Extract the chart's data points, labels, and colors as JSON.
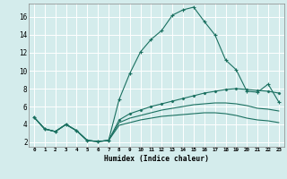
{
  "xlabel": "Humidex (Indice chaleur)",
  "bg_color": "#d4ecec",
  "grid_color": "#ffffff",
  "line_color": "#1a7060",
  "xlim": [
    -0.5,
    23.5
  ],
  "ylim": [
    1.5,
    17.5
  ],
  "xticks": [
    0,
    1,
    2,
    3,
    4,
    5,
    6,
    7,
    8,
    9,
    10,
    11,
    12,
    13,
    14,
    15,
    16,
    17,
    18,
    19,
    20,
    21,
    22,
    23
  ],
  "yticks": [
    2,
    4,
    6,
    8,
    10,
    12,
    14,
    16
  ],
  "series1_x": [
    0,
    1,
    2,
    3,
    4,
    5,
    6,
    7,
    8,
    9,
    10,
    11,
    12,
    13,
    14,
    15,
    16,
    17,
    18,
    19,
    20,
    21,
    22,
    23
  ],
  "series1_y": [
    4.8,
    3.5,
    3.2,
    4.0,
    3.3,
    2.2,
    2.1,
    2.2,
    6.8,
    9.7,
    12.1,
    13.5,
    14.5,
    16.2,
    16.8,
    17.1,
    15.5,
    14.0,
    11.2,
    10.1,
    7.7,
    7.6,
    8.5,
    6.5
  ],
  "series2_x": [
    0,
    1,
    2,
    3,
    4,
    5,
    6,
    7,
    8,
    9,
    10,
    11,
    12,
    13,
    14,
    15,
    16,
    17,
    18,
    19,
    20,
    21,
    22,
    23
  ],
  "series2_y": [
    4.8,
    3.5,
    3.2,
    4.0,
    3.3,
    2.2,
    2.1,
    2.2,
    4.5,
    5.2,
    5.6,
    6.0,
    6.3,
    6.6,
    6.9,
    7.2,
    7.5,
    7.7,
    7.9,
    8.0,
    7.9,
    7.8,
    7.7,
    7.5
  ],
  "series3_x": [
    0,
    1,
    2,
    3,
    4,
    5,
    6,
    7,
    8,
    9,
    10,
    11,
    12,
    13,
    14,
    15,
    16,
    17,
    18,
    19,
    20,
    21,
    22,
    23
  ],
  "series3_y": [
    4.8,
    3.5,
    3.2,
    4.0,
    3.3,
    2.2,
    2.1,
    2.2,
    4.2,
    4.7,
    5.0,
    5.3,
    5.6,
    5.8,
    6.0,
    6.2,
    6.3,
    6.4,
    6.4,
    6.3,
    6.1,
    5.8,
    5.7,
    5.5
  ],
  "series4_x": [
    0,
    1,
    2,
    3,
    4,
    5,
    6,
    7,
    8,
    9,
    10,
    11,
    12,
    13,
    14,
    15,
    16,
    17,
    18,
    19,
    20,
    21,
    22,
    23
  ],
  "series4_y": [
    4.8,
    3.5,
    3.2,
    4.0,
    3.3,
    2.2,
    2.1,
    2.2,
    3.9,
    4.2,
    4.5,
    4.7,
    4.9,
    5.0,
    5.1,
    5.2,
    5.3,
    5.3,
    5.2,
    5.0,
    4.7,
    4.5,
    4.4,
    4.2
  ]
}
